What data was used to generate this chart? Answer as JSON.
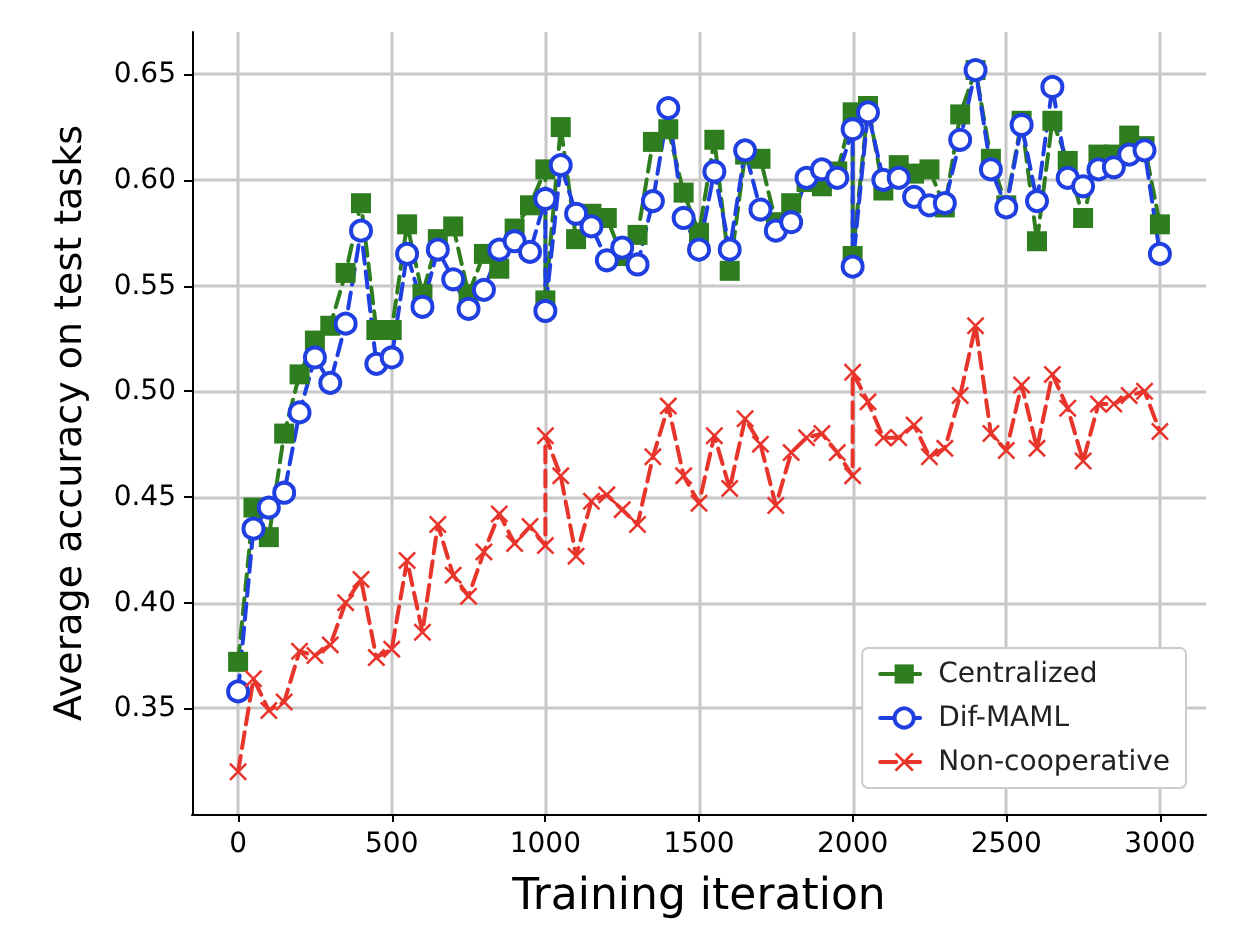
{
  "chart_data": {
    "type": "line",
    "xlabel": "Training iteration",
    "ylabel": "Average accuracy on test tasks",
    "x": [
      0,
      50,
      100,
      150,
      200,
      250,
      300,
      350,
      400,
      450,
      500,
      550,
      600,
      650,
      700,
      750,
      800,
      850,
      900,
      950,
      1000,
      1000,
      1050,
      1100,
      1150,
      1200,
      1250,
      1300,
      1350,
      1400,
      1450,
      1500,
      1550,
      1600,
      1650,
      1700,
      1750,
      1800,
      1850,
      1900,
      1950,
      2000,
      2000,
      2050,
      2100,
      2150,
      2200,
      2250,
      2300,
      2350,
      2400,
      2450,
      2500,
      2550,
      2600,
      2650,
      2700,
      2750,
      2800,
      2850,
      2900,
      2950,
      3000
    ],
    "series": [
      {
        "name": "Centralized",
        "color": "#2e7d1e",
        "marker": "square",
        "values": [
          0.372,
          0.445,
          0.431,
          0.48,
          0.508,
          0.524,
          0.531,
          0.556,
          0.589,
          0.529,
          0.529,
          0.579,
          0.546,
          0.572,
          0.578,
          0.546,
          0.565,
          0.558,
          0.577,
          0.588,
          0.605,
          0.543,
          0.625,
          0.572,
          0.584,
          0.582,
          0.564,
          0.574,
          0.618,
          0.624,
          0.594,
          0.575,
          0.619,
          0.557,
          0.612,
          0.61,
          0.58,
          0.589,
          0.599,
          0.597,
          0.604,
          0.632,
          0.564,
          0.635,
          0.595,
          0.607,
          0.603,
          0.605,
          0.587,
          0.631,
          0.652,
          0.61,
          0.588,
          0.628,
          0.571,
          0.628,
          0.609,
          0.582,
          0.612,
          0.612,
          0.621,
          0.616,
          0.579
        ]
      },
      {
        "name": "Dif-MAML",
        "color": "#1f3fe0",
        "marker": "circle",
        "values": [
          0.358,
          0.435,
          0.445,
          0.452,
          0.49,
          0.516,
          0.504,
          0.532,
          0.576,
          0.513,
          0.516,
          0.565,
          0.54,
          0.567,
          0.553,
          0.539,
          0.548,
          0.567,
          0.571,
          0.566,
          0.591,
          0.538,
          0.607,
          0.584,
          0.578,
          0.562,
          0.568,
          0.56,
          0.59,
          0.634,
          0.582,
          0.567,
          0.604,
          0.567,
          0.614,
          0.586,
          0.576,
          0.58,
          0.601,
          0.605,
          0.601,
          0.624,
          0.559,
          0.632,
          0.6,
          0.601,
          0.592,
          0.588,
          0.589,
          0.619,
          0.652,
          0.605,
          0.587,
          0.626,
          0.59,
          0.644,
          0.601,
          0.597,
          0.605,
          0.606,
          0.612,
          0.614,
          0.565
        ]
      },
      {
        "name": "Non-cooperative",
        "color": "#e8352c",
        "marker": "cross",
        "values": [
          0.32,
          0.364,
          0.349,
          0.353,
          0.377,
          0.375,
          0.38,
          0.4,
          0.411,
          0.374,
          0.378,
          0.42,
          0.386,
          0.437,
          0.413,
          0.403,
          0.424,
          0.442,
          0.428,
          0.436,
          0.427,
          0.479,
          0.46,
          0.422,
          0.448,
          0.451,
          0.444,
          0.437,
          0.469,
          0.493,
          0.46,
          0.447,
          0.479,
          0.454,
          0.487,
          0.475,
          0.446,
          0.471,
          0.478,
          0.48,
          0.471,
          0.46,
          0.509,
          0.495,
          0.478,
          0.478,
          0.484,
          0.469,
          0.473,
          0.498,
          0.531,
          0.48,
          0.472,
          0.503,
          0.473,
          0.508,
          0.492,
          0.467,
          0.494,
          0.494,
          0.498,
          0.5,
          0.481
        ]
      }
    ],
    "xlim": [
      -150,
      3150
    ],
    "xticks": [
      0,
      500,
      1000,
      1500,
      2000,
      2500,
      3000
    ],
    "ylim": [
      0.3,
      0.67
    ],
    "yticks": [
      0.35,
      {
        "value": 0.4,
        "label": "0.40"
      },
      0.45,
      {
        "value": 0.5,
        "label": "0.50"
      },
      0.55,
      {
        "value": 0.6,
        "label": "0.60"
      },
      0.65
    ],
    "grid": true,
    "legend": "bottom right",
    "line_style": "dashed"
  }
}
